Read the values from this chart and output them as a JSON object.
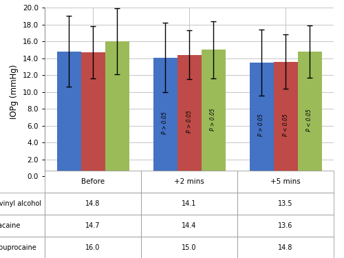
{
  "groups": [
    "Before",
    "+2 mins",
    "+5 mins"
  ],
  "series": {
    "Polyvinyl alcohol": {
      "values": [
        14.8,
        14.1,
        13.5
      ],
      "color": "#4472C4",
      "errors": [
        4.2,
        4.1,
        3.9
      ]
    },
    "Tetracaine": {
      "values": [
        14.7,
        14.4,
        13.6
      ],
      "color": "#BE4B48",
      "errors": [
        3.1,
        2.9,
        3.2
      ]
    },
    "Oxybuprocaine": {
      "values": [
        16.0,
        15.0,
        14.8
      ],
      "color": "#9BBB59",
      "errors": [
        3.9,
        3.4,
        3.1
      ]
    }
  },
  "ylabel": "IOPg (mmHg)",
  "ylim": [
    0.0,
    20.0
  ],
  "yticks": [
    0.0,
    2.0,
    4.0,
    6.0,
    8.0,
    10.0,
    12.0,
    14.0,
    16.0,
    18.0,
    20.0
  ],
  "bar_width": 0.25,
  "annotations_2mins": [
    "P > 0.05",
    "P > 0.05",
    "P > 0.05"
  ],
  "annotations_5mins": [
    "P > 0.05",
    "P < 0.05",
    "P < 0.05"
  ],
  "ann_colors_2mins": [
    "black",
    "black",
    "black"
  ],
  "ann_colors_5mins": [
    "black",
    "black",
    "black"
  ],
  "table_header": [
    "Before",
    "+2 mins",
    "+5 mins"
  ],
  "table_data": [
    [
      "14.8",
      "14.1",
      "13.5"
    ],
    [
      "14.7",
      "14.4",
      "13.6"
    ],
    [
      "16.0",
      "15.0",
      "14.8"
    ]
  ],
  "table_rows": [
    "Polyvinyl alcohol",
    "Tetracaine",
    "Oxybuprocaine"
  ],
  "table_row_colors": [
    "#4472C4",
    "#BE4B48",
    "#9BBB59"
  ],
  "background_color": "#FFFFFF",
  "grid_color": "#BBBBBB",
  "spine_color": "#888888"
}
